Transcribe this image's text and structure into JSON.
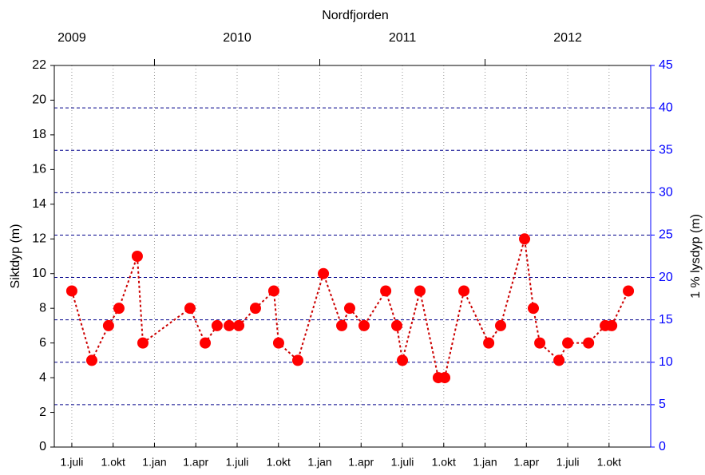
{
  "chart_data": {
    "type": "line",
    "title": "Nordfjorden",
    "y_label": "Siktdyp (m)",
    "y2_label": "1 % lysdyp (m)",
    "x": [
      2009.5,
      2009.621,
      2009.722,
      2009.785,
      2009.896,
      2009.93,
      2010.215,
      2010.307,
      2010.379,
      2010.452,
      2010.51,
      2010.611,
      2010.722,
      2010.751,
      2010.867,
      2011.022,
      2011.133,
      2011.181,
      2011.268,
      2011.399,
      2011.466,
      2011.5,
      2011.606,
      2011.717,
      2011.756,
      2011.872,
      2012.022,
      2012.094,
      2012.239,
      2012.292,
      2012.331,
      2012.447,
      2012.5,
      2012.626,
      2012.727,
      2012.766,
      2012.867
    ],
    "series": [
      {
        "color": "#ff0000",
        "values": [
          9,
          5,
          7,
          8,
          11,
          6,
          8,
          6,
          7,
          7,
          7,
          8,
          9,
          6,
          5,
          10,
          7,
          8,
          7,
          9,
          7,
          5,
          9,
          4,
          4,
          9,
          6,
          7,
          12,
          8,
          6,
          5,
          6,
          6,
          7,
          7,
          9
        ]
      }
    ],
    "xlim": [
      2009.394,
      2013.002
    ],
    "xticks": [
      {
        "value": 2009.5,
        "label": "1.juli"
      },
      {
        "value": 2009.75,
        "label": "1.okt"
      },
      {
        "value": 2010,
        "label": "1.jan"
      },
      {
        "value": 2010.25,
        "label": "1.apr"
      },
      {
        "value": 2010.5,
        "label": "1.juli"
      },
      {
        "value": 2010.75,
        "label": "1.okt"
      },
      {
        "value": 2011,
        "label": "1.jan"
      },
      {
        "value": 2011.25,
        "label": "1.apr"
      },
      {
        "value": 2011.5,
        "label": "1.juli"
      },
      {
        "value": 2011.75,
        "label": "1.okt"
      },
      {
        "value": 2012,
        "label": "1.jan"
      },
      {
        "value": 2012.25,
        "label": "1.apr"
      },
      {
        "value": 2012.5,
        "label": "1.juli"
      },
      {
        "value": 2012.75,
        "label": "1.okt"
      }
    ],
    "x2ticks": [
      {
        "value": 2009.5,
        "label": "2009"
      },
      {
        "value": 2010.5,
        "label": "2010"
      },
      {
        "value": 2011.5,
        "label": "2011"
      },
      {
        "value": 2012.5,
        "label": "2012"
      }
    ],
    "ylim": [
      0,
      22
    ],
    "yticks": [
      0,
      2,
      4,
      6,
      8,
      10,
      12,
      14,
      16,
      18,
      20,
      22
    ],
    "y2lim": [
      0,
      45
    ],
    "y2ticks": [
      0,
      5,
      10,
      15,
      20,
      25,
      30,
      35,
      40,
      45
    ],
    "y2color": "#0000ff",
    "grid": true
  }
}
